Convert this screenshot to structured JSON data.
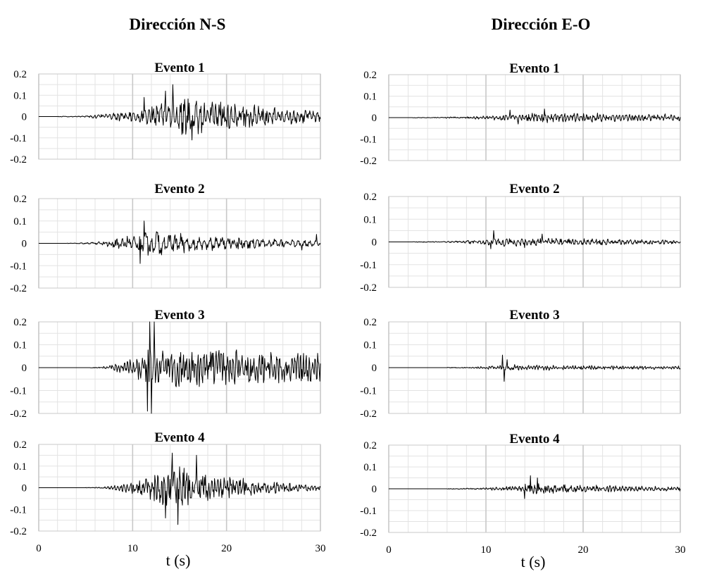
{
  "columns": [
    {
      "title": "Dirección N-S",
      "xlabel": "t (s)"
    },
    {
      "title": "Dirección E-O",
      "xlabel": "t (s)"
    }
  ],
  "chart_data": [
    {
      "type": "line",
      "title": "Evento 1",
      "column": "Dirección N-S",
      "xlim": [
        0,
        30
      ],
      "ylim": [
        -0.2,
        0.2
      ],
      "xticks": [
        "0",
        "10",
        "20",
        "30"
      ],
      "yticks": [
        "0.2",
        "0.1",
        "0",
        "-0.1",
        "-0.2"
      ],
      "xtick_labels_shown": false,
      "xlabel": "",
      "grid": true,
      "series": [
        {
          "signal": {
            "onset": 2.0,
            "peak_time": 16.0,
            "amplitude": 0.06,
            "decay": 0.09,
            "freq": 2.4,
            "seed": 11
          },
          "extremes": [
            [
              14.3,
              0.15
            ],
            [
              16.3,
              -0.11
            ],
            [
              11.2,
              0.09
            ],
            [
              13.5,
              0.12
            ]
          ]
        }
      ]
    },
    {
      "type": "line",
      "title": "Evento 2",
      "column": "Dirección N-S",
      "xlim": [
        0,
        30
      ],
      "ylim": [
        -0.2,
        0.2
      ],
      "xticks": [
        "0",
        "10",
        "20",
        "30"
      ],
      "yticks": [
        "0.2",
        "0.1",
        "0",
        "-0.1",
        "-0.2"
      ],
      "xtick_labels_shown": false,
      "xlabel": "",
      "grid": true,
      "series": [
        {
          "signal": {
            "onset": 3.0,
            "peak_time": 11.5,
            "amplitude": 0.035,
            "decay": 0.08,
            "freq": 1.6,
            "seed": 23
          },
          "extremes": [
            [
              11.2,
              0.1
            ],
            [
              10.8,
              -0.09
            ],
            [
              28.0,
              -0.03
            ],
            [
              29.6,
              0.04
            ]
          ]
        }
      ]
    },
    {
      "type": "line",
      "title": "Evento 3",
      "column": "Dirección N-S",
      "xlim": [
        0,
        30
      ],
      "ylim": [
        -0.2,
        0.2
      ],
      "xticks": [
        "0",
        "10",
        "20",
        "30"
      ],
      "yticks": [
        "0.2",
        "0.1",
        "0",
        "-0.1",
        "-0.2"
      ],
      "xtick_labels_shown": false,
      "xlabel": "",
      "grid": true,
      "series": [
        {
          "signal": {
            "onset": 5.5,
            "peak_time": 12.0,
            "amplitude": 0.055,
            "decay": 0.02,
            "freq": 3.2,
            "seed": 37
          },
          "extremes": [
            [
              11.8,
              0.2
            ],
            [
              12.0,
              -0.2
            ],
            [
              12.3,
              0.2
            ],
            [
              11.6,
              -0.19
            ]
          ]
        }
      ]
    },
    {
      "type": "line",
      "title": "Evento 4",
      "column": "Dirección N-S",
      "xlim": [
        0,
        30
      ],
      "ylim": [
        -0.2,
        0.2
      ],
      "xticks": [
        "0",
        "10",
        "20",
        "30"
      ],
      "yticks": [
        "0.2",
        "0.1",
        "0",
        "-0.1",
        "-0.2"
      ],
      "xtick_labels_shown": true,
      "xlabel": "t (s)",
      "grid": true,
      "series": [
        {
          "signal": {
            "onset": 5.0,
            "peak_time": 14.5,
            "amplitude": 0.065,
            "decay": 0.13,
            "freq": 3.0,
            "seed": 41
          },
          "extremes": [
            [
              14.2,
              0.16
            ],
            [
              14.8,
              -0.17
            ],
            [
              16.8,
              0.15
            ],
            [
              13.5,
              -0.14
            ]
          ]
        }
      ]
    },
    {
      "type": "line",
      "title": "Evento 1",
      "column": "Dirección E-O",
      "xlim": [
        0,
        30
      ],
      "ylim": [
        -0.2,
        0.2
      ],
      "xticks": [
        "0",
        "10",
        "20",
        "30"
      ],
      "yticks": [
        "0.2",
        "0.1",
        "0",
        "-0.1",
        "-0.2"
      ],
      "xtick_labels_shown": false,
      "xlabel": "",
      "grid": true,
      "series": [
        {
          "signal": {
            "onset": 2.5,
            "peak_time": 15.0,
            "amplitude": 0.015,
            "decay": 0.03,
            "freq": 3.0,
            "seed": 53
          },
          "extremes": [
            [
              16.0,
              0.04
            ],
            [
              13.3,
              -0.03
            ],
            [
              12.5,
              0.035
            ]
          ]
        }
      ]
    },
    {
      "type": "line",
      "title": "Evento 2",
      "column": "Dirección E-O",
      "xlim": [
        0,
        30
      ],
      "ylim": [
        -0.2,
        0.2
      ],
      "xticks": [
        "0",
        "10",
        "20",
        "30"
      ],
      "yticks": [
        "0.2",
        "0.1",
        "0",
        "-0.1",
        "-0.2"
      ],
      "xtick_labels_shown": false,
      "xlabel": "",
      "grid": true,
      "series": [
        {
          "signal": {
            "onset": 2.5,
            "peak_time": 11.5,
            "amplitude": 0.012,
            "decay": 0.04,
            "freq": 2.5,
            "seed": 67
          },
          "extremes": [
            [
              10.8,
              0.05
            ],
            [
              10.5,
              -0.03
            ],
            [
              15.8,
              0.035
            ],
            [
              14.0,
              -0.025
            ]
          ]
        }
      ]
    },
    {
      "type": "line",
      "title": "Evento 3",
      "column": "Dirección E-O",
      "xlim": [
        0,
        30
      ],
      "ylim": [
        -0.2,
        0.2
      ],
      "xticks": [
        "0",
        "10",
        "20",
        "30"
      ],
      "yticks": [
        "0.2",
        "0.1",
        "0",
        "-0.1",
        "-0.2"
      ],
      "xtick_labels_shown": false,
      "xlabel": "",
      "grid": true,
      "series": [
        {
          "signal": {
            "onset": 6.0,
            "peak_time": 12.0,
            "amplitude": 0.008,
            "decay": 0.04,
            "freq": 3.5,
            "seed": 79
          },
          "extremes": [
            [
              11.7,
              0.055
            ],
            [
              11.9,
              -0.06
            ],
            [
              12.2,
              0.035
            ]
          ]
        }
      ]
    },
    {
      "type": "line",
      "title": "Evento 4",
      "column": "Dirección E-O",
      "xlim": [
        0,
        30
      ],
      "ylim": [
        -0.2,
        0.2
      ],
      "xticks": [
        "0",
        "10",
        "20",
        "30"
      ],
      "yticks": [
        "0.2",
        "0.1",
        "0",
        "-0.1",
        "-0.2"
      ],
      "xtick_labels_shown": true,
      "xlabel": "t (s)",
      "grid": true,
      "series": [
        {
          "signal": {
            "onset": 6.0,
            "peak_time": 14.5,
            "amplitude": 0.015,
            "decay": 0.06,
            "freq": 3.0,
            "seed": 97
          },
          "extremes": [
            [
              14.6,
              0.06
            ],
            [
              14.0,
              -0.045
            ],
            [
              15.3,
              0.05
            ]
          ]
        }
      ]
    }
  ]
}
